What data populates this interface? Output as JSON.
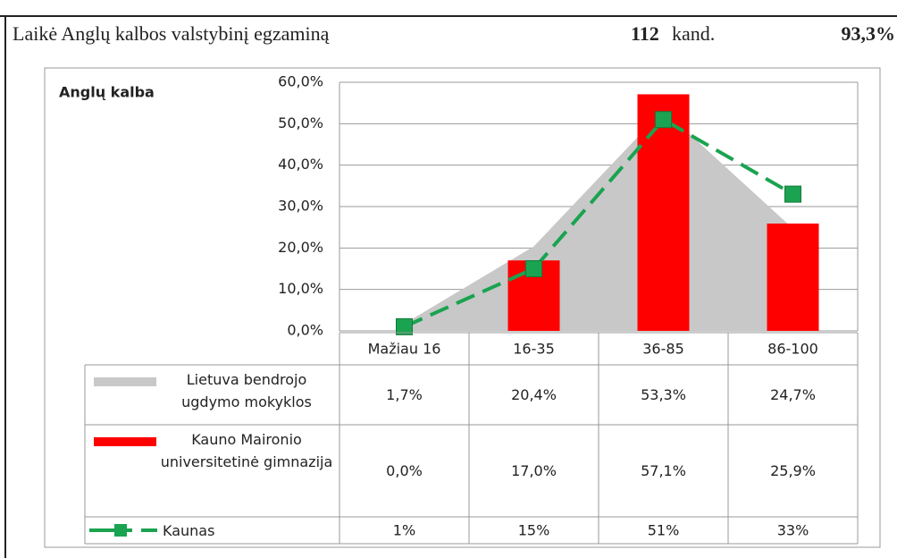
{
  "header": {
    "exam": "Laikė Anglų kalbos  valstybinį egzaminą",
    "count": "112",
    "count_unit": "kand.",
    "percent": "93,3%"
  },
  "chart_data": {
    "type": "bar",
    "title": "Anglų kalba",
    "categories": [
      "Mažiau 16",
      "16-35",
      "36-85",
      "86-100"
    ],
    "ylim": [
      0,
      60
    ],
    "yticks": [
      {
        "value": 0,
        "label": "0,0%"
      },
      {
        "value": 10,
        "label": "10,0%"
      },
      {
        "value": 20,
        "label": "20,0%"
      },
      {
        "value": 30,
        "label": "30,0%"
      },
      {
        "value": 40,
        "label": "40,0%"
      },
      {
        "value": 50,
        "label": "50,0%"
      },
      {
        "value": 60,
        "label": "60,0%"
      }
    ],
    "grid": true,
    "series": [
      {
        "name": "Lietuva bendrojo ugdymo mokyklos",
        "type": "area",
        "color": "#c8c8c8",
        "values": [
          1.7,
          20.4,
          53.3,
          24.7
        ],
        "value_labels": [
          "1,7%",
          "20,4%",
          "53,3%",
          "24,7%"
        ]
      },
      {
        "name": "Kauno Maironio universitetinė gimnazija",
        "type": "bar",
        "color": "#ff0000",
        "values": [
          0.0,
          17.0,
          57.1,
          25.9
        ],
        "value_labels": [
          "0,0%",
          "17,0%",
          "57,1%",
          "25,9%"
        ]
      },
      {
        "name": "Kaunas",
        "type": "line",
        "color": "#1aa350",
        "values": [
          1,
          15,
          51,
          33
        ],
        "value_labels": [
          "1%",
          "15%",
          "51%",
          "33%"
        ]
      }
    ]
  }
}
